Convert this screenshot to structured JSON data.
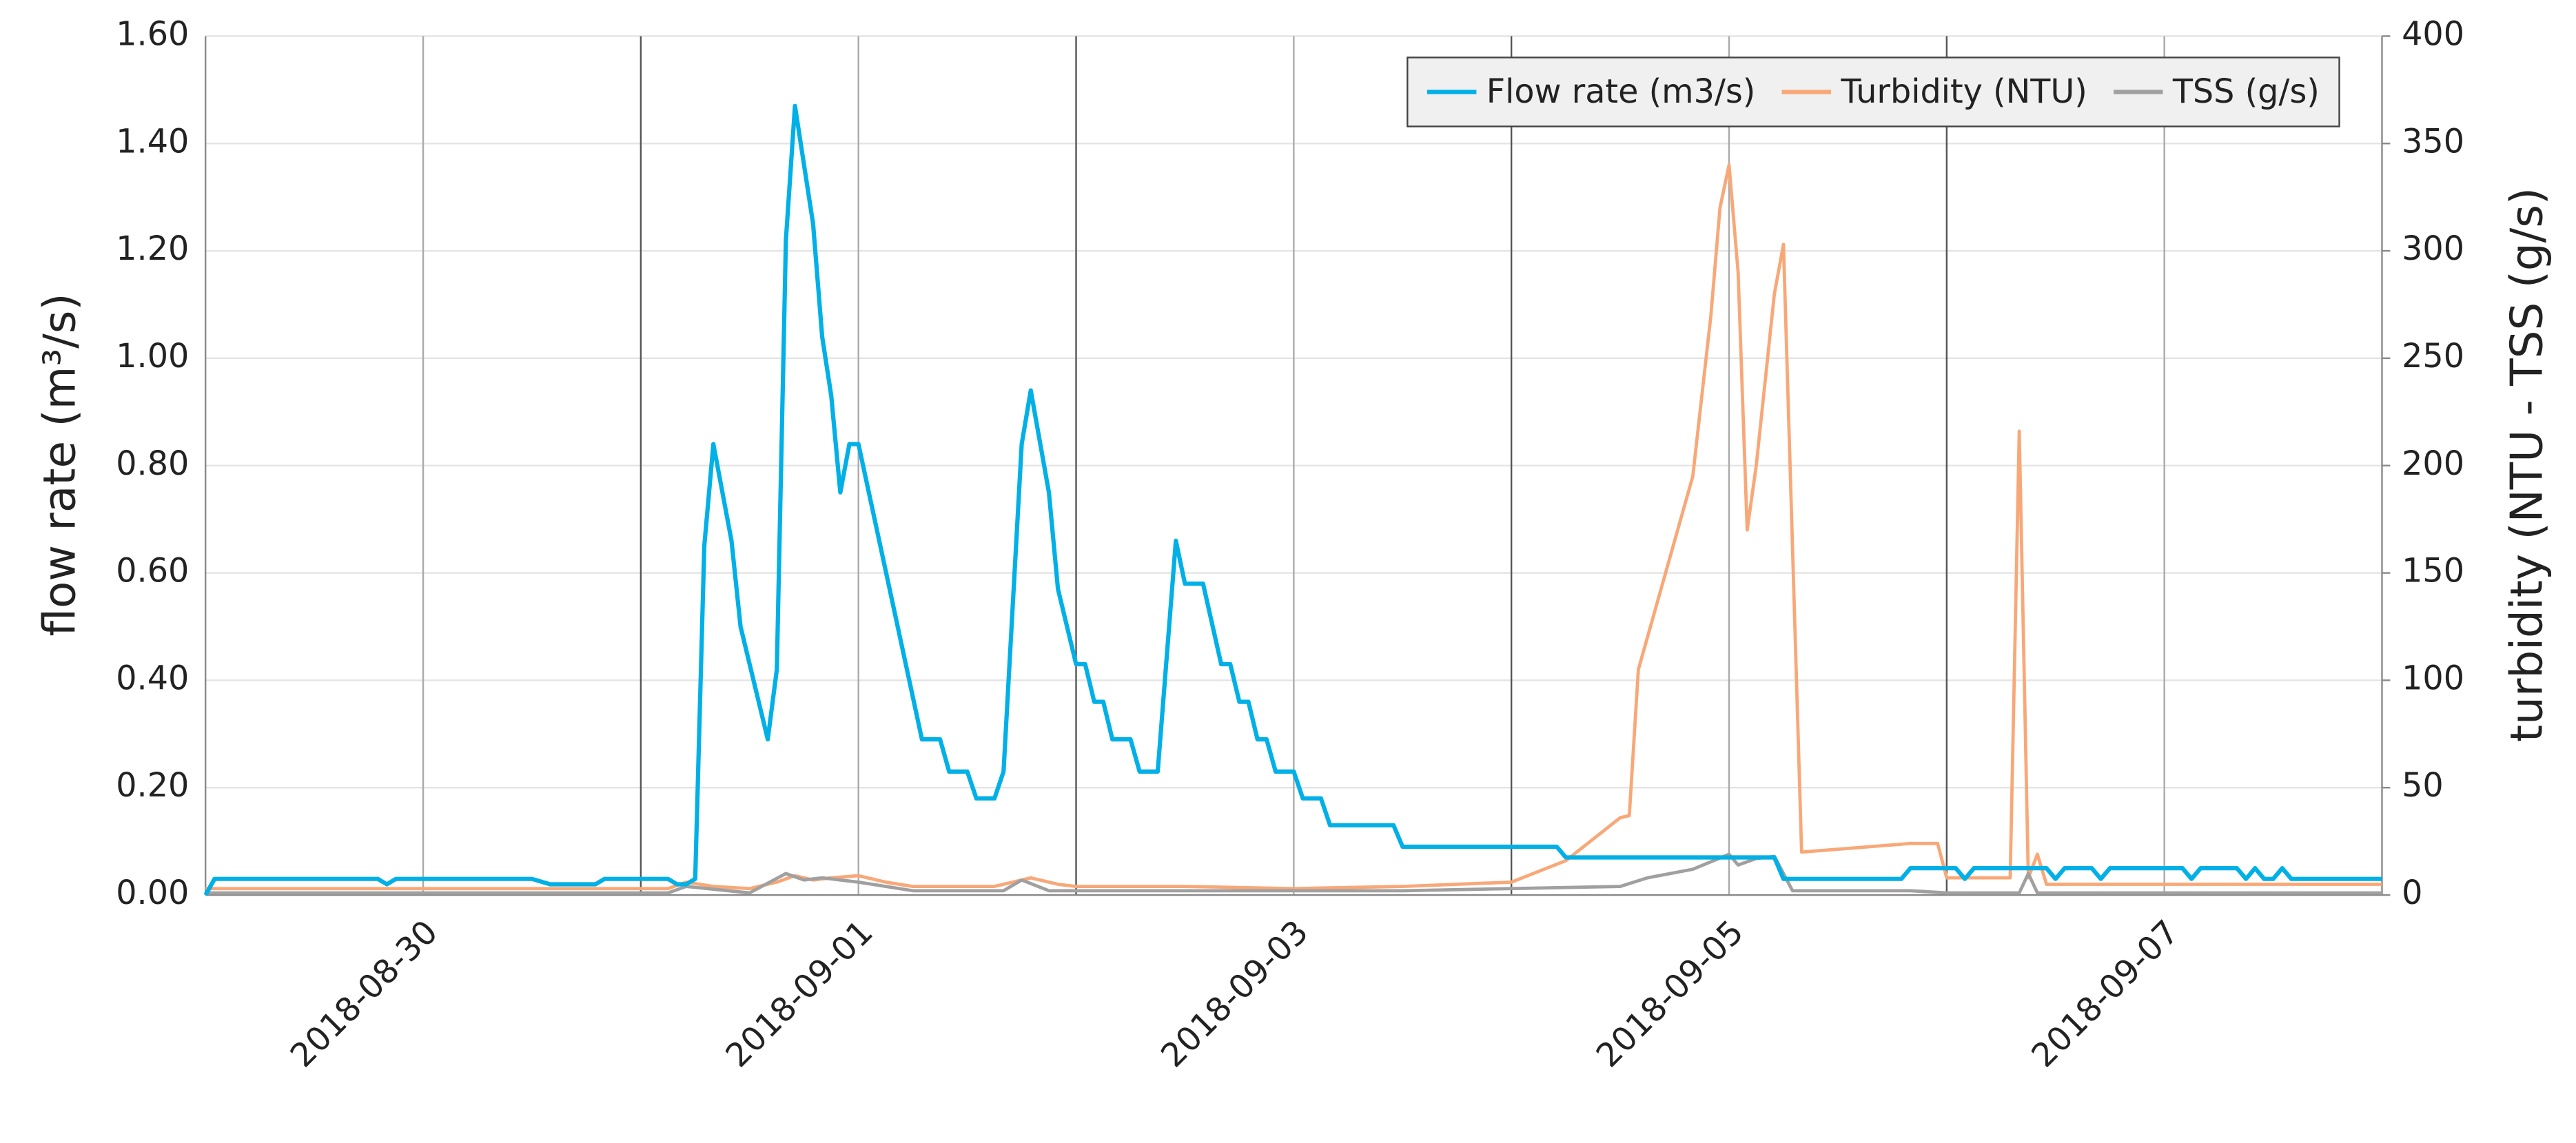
{
  "chart_data": {
    "type": "line",
    "ylabel": "flow rate (m³/s)",
    "y2label": "turbidity (NTU - TSS (g/s)",
    "xlim": [
      "2018-08-29 00:00",
      "2018-09-08 00:00"
    ],
    "xticks": [
      "2018-08-30",
      "2018-09-01",
      "2018-09-03",
      "2018-09-05",
      "2018-09-07"
    ],
    "ylim": [
      0,
      1.6
    ],
    "yticks": [
      {
        "value": 0,
        "label": "0.00"
      },
      {
        "value": 0.2,
        "label": "0.20"
      },
      {
        "value": 0.4,
        "label": "0.40"
      },
      {
        "value": 0.6,
        "label": "0.60"
      },
      {
        "value": 0.8,
        "label": "0.80"
      },
      {
        "value": 1.0,
        "label": "1.00"
      },
      {
        "value": 1.2,
        "label": "1.20"
      },
      {
        "value": 1.4,
        "label": "1.40"
      },
      {
        "value": 1.6,
        "label": "1.60"
      }
    ],
    "y2lim": [
      0,
      400
    ],
    "y2ticks": [
      0,
      50,
      100,
      150,
      200,
      250,
      300,
      350,
      400
    ],
    "grid": true,
    "legend": "upper right",
    "series": [
      {
        "name": "Flow rate (m3/s)",
        "color": "#00b0e6",
        "x": [
          "2018-08-29 00:00",
          "2018-08-29 01:00",
          "2018-08-29 19:00",
          "2018-08-29 20:00",
          "2018-08-29 21:00",
          "2018-08-30 12:00",
          "2018-08-30 14:00",
          "2018-08-30 19:00",
          "2018-08-30 20:00",
          "2018-08-31 03:00",
          "2018-08-31 04:00",
          "2018-08-31 05:00",
          "2018-08-31 06:00",
          "2018-08-31 07:00",
          "2018-08-31 08:00",
          "2018-08-31 10:00",
          "2018-08-31 11:00",
          "2018-08-31 14:00",
          "2018-08-31 15:00",
          "2018-08-31 16:00",
          "2018-08-31 17:00",
          "2018-08-31 19:00",
          "2018-08-31 20:00",
          "2018-08-31 21:00",
          "2018-08-31 22:00",
          "2018-08-31 23:00",
          "2018-09-01 00:00",
          "2018-09-01 07:00",
          "2018-09-01 09:00",
          "2018-09-01 10:00",
          "2018-09-01 12:00",
          "2018-09-01 13:00",
          "2018-09-01 15:00",
          "2018-09-01 16:00",
          "2018-09-01 18:00",
          "2018-09-01 19:00",
          "2018-09-01 21:00",
          "2018-09-01 22:00",
          "2018-09-02 00:00",
          "2018-09-02 01:00",
          "2018-09-02 02:00",
          "2018-09-02 03:00",
          "2018-09-02 04:00",
          "2018-09-02 06:00",
          "2018-09-02 07:00",
          "2018-09-02 09:00",
          "2018-09-02 11:00",
          "2018-09-02 12:00",
          "2018-09-02 14:00",
          "2018-09-02 16:00",
          "2018-09-02 17:00",
          "2018-09-02 18:00",
          "2018-09-02 19:00",
          "2018-09-02 20:00",
          "2018-09-02 21:00",
          "2018-09-02 22:00",
          "2018-09-03 00:00",
          "2018-09-03 01:00",
          "2018-09-03 03:00",
          "2018-09-03 04:00",
          "2018-09-03 11:00",
          "2018-09-03 12:00",
          "2018-09-04 05:00",
          "2018-09-04 06:00",
          "2018-09-05 05:00",
          "2018-09-05 06:00",
          "2018-09-05 19:00",
          "2018-09-05 20:00",
          "2018-09-06 01:00",
          "2018-09-06 02:00",
          "2018-09-06 03:00",
          "2018-09-06 11:00",
          "2018-09-06 12:00",
          "2018-09-06 13:00",
          "2018-09-06 16:00",
          "2018-09-06 17:00",
          "2018-09-06 18:00",
          "2018-09-07 02:00",
          "2018-09-07 03:00",
          "2018-09-07 04:00",
          "2018-09-07 08:00",
          "2018-09-07 09:00",
          "2018-09-07 10:00",
          "2018-09-07 11:00",
          "2018-09-07 12:00",
          "2018-09-07 13:00",
          "2018-09-07 14:00",
          "2018-09-08 00:00"
        ],
        "values": [
          0,
          0.03,
          0.03,
          0.02,
          0.03,
          0.03,
          0.02,
          0.02,
          0.03,
          0.03,
          0.02,
          0.02,
          0.03,
          0.65,
          0.84,
          0.66,
          0.5,
          0.29,
          0.42,
          1.22,
          1.47,
          1.25,
          1.04,
          0.93,
          0.75,
          0.84,
          0.84,
          0.29,
          0.29,
          0.23,
          0.23,
          0.18,
          0.18,
          0.23,
          0.84,
          0.94,
          0.75,
          0.57,
          0.43,
          0.43,
          0.36,
          0.36,
          0.29,
          0.29,
          0.23,
          0.23,
          0.66,
          0.58,
          0.58,
          0.43,
          0.43,
          0.36,
          0.36,
          0.29,
          0.29,
          0.23,
          0.23,
          0.18,
          0.18,
          0.13,
          0.13,
          0.09,
          0.09,
          0.07,
          0.07,
          0.03,
          0.03,
          0.05,
          0.05,
          0.03,
          0.05,
          0.05,
          0.03,
          0.05,
          0.05,
          0.03,
          0.05,
          0.05,
          0.03,
          0.05,
          0.05,
          0.03,
          0.05,
          0.03,
          0.03,
          0.05,
          0.03,
          0.03
        ]
      },
      {
        "name": "Turbidity (NTU)",
        "color": "#f8a878",
        "axis": "y2",
        "x": [
          "2018-08-29 00:00",
          "2018-08-31 03:00",
          "2018-08-31 05:00",
          "2018-08-31 08:00",
          "2018-08-31 12:00",
          "2018-08-31 15:00",
          "2018-08-31 17:00",
          "2018-08-31 19:00",
          "2018-08-31 21:00",
          "2018-09-01 00:00",
          "2018-09-01 03:00",
          "2018-09-01 06:00",
          "2018-09-01 15:00",
          "2018-09-01 19:00",
          "2018-09-01 22:00",
          "2018-09-02 00:00",
          "2018-09-02 12:00",
          "2018-09-03 00:00",
          "2018-09-03 12:00",
          "2018-09-04 00:00",
          "2018-09-04 06:00",
          "2018-09-04 12:00",
          "2018-09-04 13:00",
          "2018-09-04 14:00",
          "2018-09-04 17:00",
          "2018-09-04 20:00",
          "2018-09-04 22:00",
          "2018-09-04 23:00",
          "2018-09-05 00:00",
          "2018-09-05 01:00",
          "2018-09-05 02:00",
          "2018-09-05 03:00",
          "2018-09-05 05:00",
          "2018-09-05 06:00",
          "2018-09-05 08:00",
          "2018-09-05 14:00",
          "2018-09-05 20:00",
          "2018-09-05 23:00",
          "2018-09-06 00:00",
          "2018-09-06 07:00",
          "2018-09-06 08:00",
          "2018-09-06 09:00",
          "2018-09-06 10:00",
          "2018-09-06 11:00",
          "2018-09-08 00:00"
        ],
        "values": [
          3,
          3,
          6,
          4,
          3,
          6,
          9,
          7,
          8,
          9,
          6,
          4,
          4,
          8,
          5,
          4,
          4,
          3,
          4,
          6,
          16,
          36,
          37,
          105,
          150,
          195,
          270,
          320,
          340,
          290,
          170,
          200,
          280,
          303,
          20,
          22,
          24,
          24,
          8,
          8,
          216,
          8,
          19,
          5,
          5
        ]
      },
      {
        "name": "TSS (g/s)",
        "color": "#a0a0a0",
        "axis": "y2",
        "x": [
          "2018-08-29 00:00",
          "2018-08-31 03:00",
          "2018-08-31 05:00",
          "2018-08-31 12:00",
          "2018-08-31 16:00",
          "2018-08-31 18:00",
          "2018-08-31 20:00",
          "2018-09-01 00:00",
          "2018-09-01 06:00",
          "2018-09-01 16:00",
          "2018-09-01 18:00",
          "2018-09-01 21:00",
          "2018-09-02 00:00",
          "2018-09-03 12:00",
          "2018-09-04 12:00",
          "2018-09-04 15:00",
          "2018-09-04 20:00",
          "2018-09-05 00:00",
          "2018-09-05 01:00",
          "2018-09-05 03:00",
          "2018-09-05 05:00",
          "2018-09-05 07:00",
          "2018-09-05 20:00",
          "2018-09-06 00:00",
          "2018-09-06 08:00",
          "2018-09-06 09:00",
          "2018-09-06 10:00",
          "2018-09-08 00:00"
        ],
        "values": [
          1,
          1,
          4,
          1,
          10,
          7,
          8,
          6,
          2,
          2,
          7,
          2,
          2,
          2,
          4,
          8,
          12,
          19,
          14,
          17,
          18,
          2,
          2,
          1,
          1,
          10,
          1,
          1
        ]
      }
    ]
  }
}
